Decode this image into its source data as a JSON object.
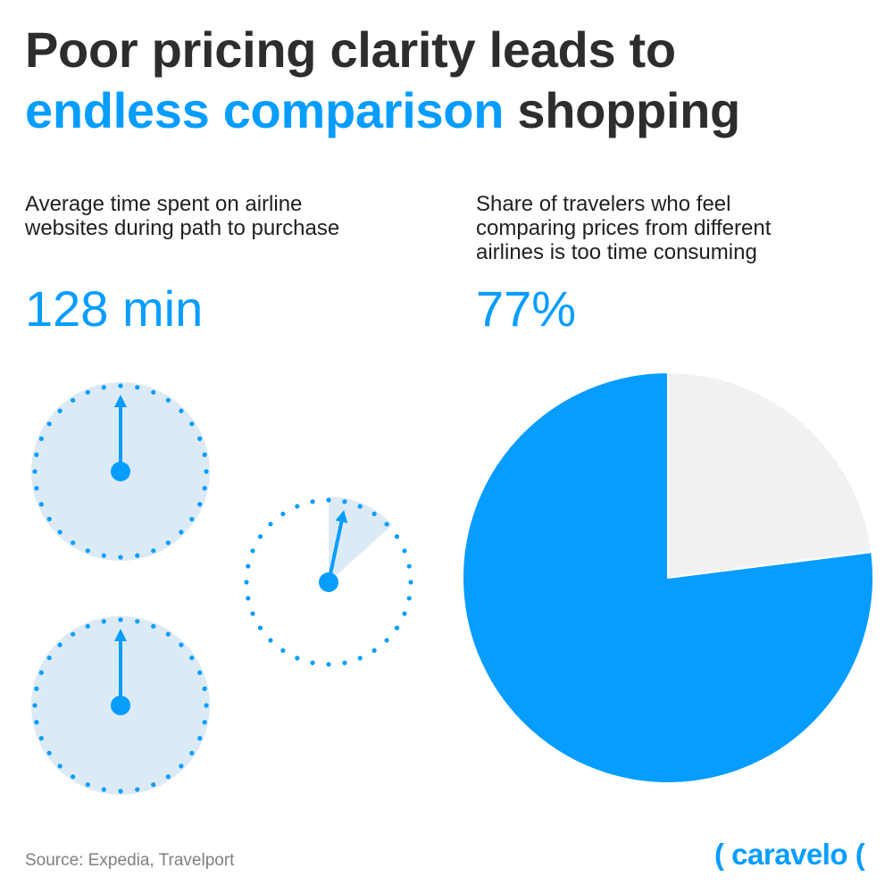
{
  "title": {
    "line1": "Poor pricing clarity leads to",
    "accent": "endless comparison",
    "rest": "shopping"
  },
  "left_panel": {
    "caption_line1": "Average time spent on airline",
    "caption_line2": "websites during path to purchase",
    "value": "128 min"
  },
  "right_panel": {
    "caption_line1": "Share of travelers who feel",
    "caption_line2": "comparing prices from different",
    "caption_line3": "airlines is too time consuming",
    "value": "77%"
  },
  "source": "Source: Expedia, Travelport",
  "logo": "( caravelo (",
  "colors": {
    "accent": "#069dff",
    "clock_fill": "#dceaf5",
    "pie_rest": "#f1f1f1",
    "title": "#2d2d2d"
  },
  "chart_data": [
    {
      "type": "clock-icons",
      "total_minutes": 128,
      "full_clocks": 2,
      "partial_clock_minutes": 8
    },
    {
      "type": "pie",
      "values": [
        77,
        23
      ]
    }
  ]
}
